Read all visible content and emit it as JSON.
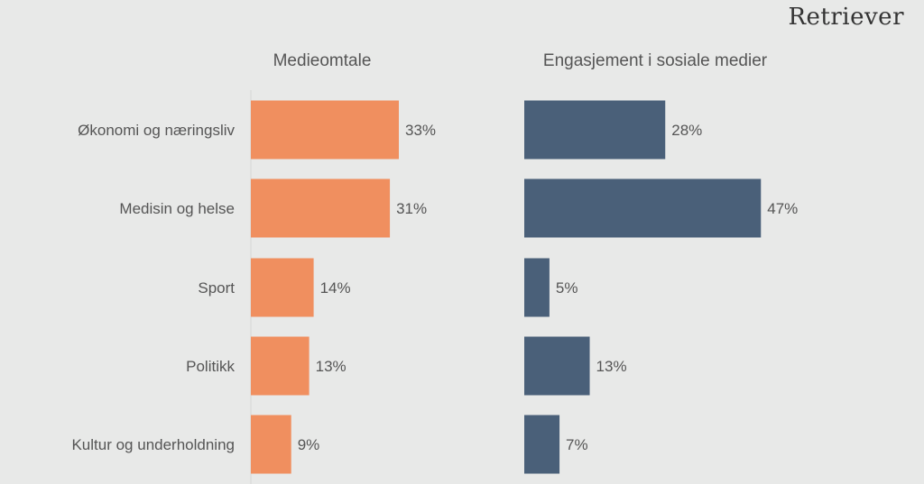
{
  "logo": "Retriever",
  "colors": {
    "left": "#f08f5f",
    "right": "#4a6079",
    "text": "#555555",
    "axis": "#d6d7d6"
  },
  "chart_data": [
    {
      "type": "bar",
      "orientation": "horizontal",
      "title": "Medieomtale",
      "categories": [
        "Økonomi og næringsliv",
        "Medisin og helse",
        "Sport",
        "Politikk",
        "Kultur og underholdning"
      ],
      "values": [
        33,
        31,
        14,
        13,
        9
      ],
      "labels": [
        "33%",
        "31%",
        "14%",
        "13%",
        "9%"
      ],
      "unit": "%"
    },
    {
      "type": "bar",
      "orientation": "horizontal",
      "title": "Engasjement i sosiale medier",
      "categories": [
        "Økonomi og næringsliv",
        "Medisin og helse",
        "Sport",
        "Politikk",
        "Kultur og underholdning"
      ],
      "values": [
        28,
        47,
        5,
        13,
        7
      ],
      "labels": [
        "28%",
        "47%",
        "5%",
        "13%",
        "7%"
      ],
      "unit": "%"
    }
  ]
}
